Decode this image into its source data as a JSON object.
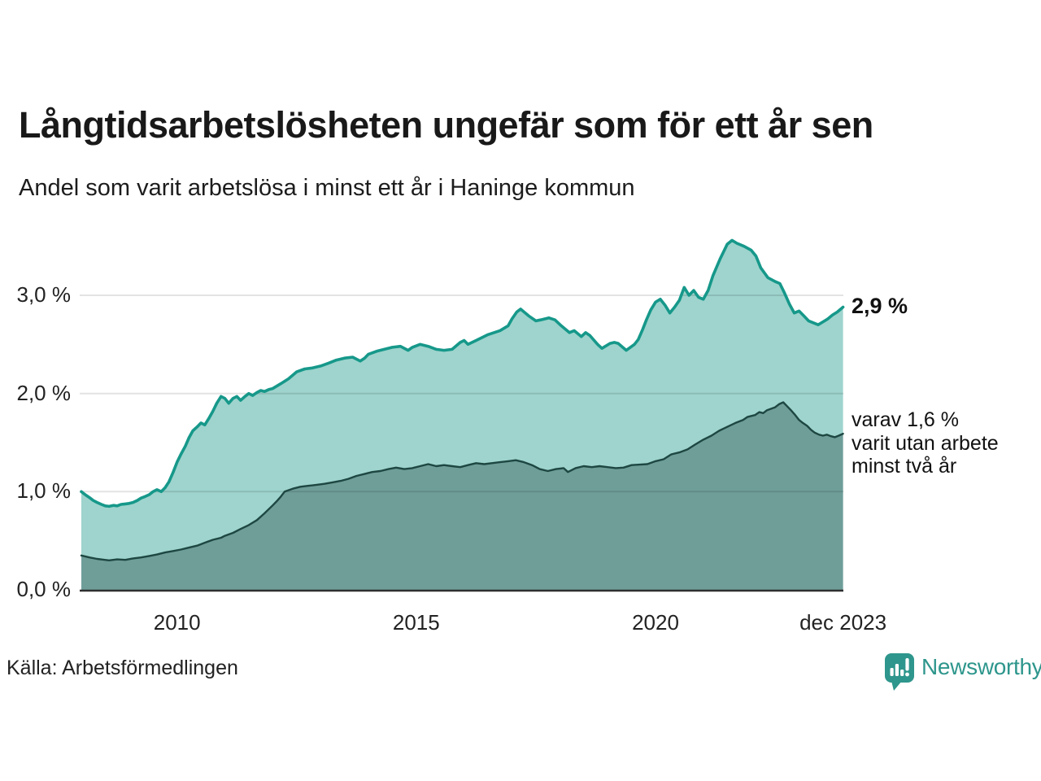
{
  "title": "Långtidsarbetslösheten ungefär som för ett år sen",
  "subtitle": "Andel som varit arbetslösa i minst ett år i Haninge kommun",
  "source": "Källa: Arbetsförmedlingen",
  "branding": {
    "name": "Newsworthy",
    "color": "#2e968c",
    "icon": "bar-chart-speech-bubble-icon"
  },
  "annotations": {
    "latest_total": "2,9 %",
    "secondary": "varav 1,6 %\nvarit utan arbete\nminst två år"
  },
  "colors": {
    "line_total": "#16988a",
    "fill_total": "#9ed4cd",
    "line_two_years": "#1e4742",
    "fill_two_years": "#6f9e99",
    "gridline": "rgba(0,0,0,0.11)",
    "axis": "#2f2f2f",
    "text": "#1a1a1a"
  },
  "chart_data": {
    "type": "area",
    "title": "Långtidsarbetslösheten ungefär som för ett år sen",
    "xlabel": "",
    "ylabel": "",
    "grid": true,
    "legend_position": "right-annotations",
    "xlim": [
      2008.0,
      2023.92
    ],
    "ylim": [
      0,
      3.6
    ],
    "x_ticks": [
      {
        "x": 2010,
        "label": "2010"
      },
      {
        "x": 2015,
        "label": "2015"
      },
      {
        "x": 2020,
        "label": "2020"
      },
      {
        "x": 2023.92,
        "label": "dec 2023"
      }
    ],
    "y_ticks": [
      {
        "y": 0,
        "label": "0,0 %"
      },
      {
        "y": 1,
        "label": "1,0 %"
      },
      {
        "y": 2,
        "label": "2,0 %"
      },
      {
        "y": 3,
        "label": "3,0 %"
      }
    ],
    "series": [
      {
        "name": "Andel arbetslösa minst ett år",
        "latest_value": 2.9,
        "color": "#16988a",
        "fill": "#9ed4cd",
        "points": [
          [
            2008.0,
            1.0
          ],
          [
            2008.08,
            0.97
          ],
          [
            2008.17,
            0.94
          ],
          [
            2008.25,
            0.91
          ],
          [
            2008.33,
            0.89
          ],
          [
            2008.42,
            0.87
          ],
          [
            2008.5,
            0.855
          ],
          [
            2008.58,
            0.85
          ],
          [
            2008.67,
            0.86
          ],
          [
            2008.75,
            0.855
          ],
          [
            2008.83,
            0.87
          ],
          [
            2008.92,
            0.875
          ],
          [
            2009.0,
            0.88
          ],
          [
            2009.08,
            0.89
          ],
          [
            2009.17,
            0.91
          ],
          [
            2009.25,
            0.935
          ],
          [
            2009.33,
            0.95
          ],
          [
            2009.42,
            0.97
          ],
          [
            2009.5,
            1.0
          ],
          [
            2009.58,
            1.02
          ],
          [
            2009.67,
            1.0
          ],
          [
            2009.75,
            1.04
          ],
          [
            2009.83,
            1.1
          ],
          [
            2009.92,
            1.2
          ],
          [
            2010.0,
            1.3
          ],
          [
            2010.08,
            1.38
          ],
          [
            2010.17,
            1.46
          ],
          [
            2010.25,
            1.55
          ],
          [
            2010.33,
            1.62
          ],
          [
            2010.42,
            1.66
          ],
          [
            2010.5,
            1.7
          ],
          [
            2010.58,
            1.68
          ],
          [
            2010.67,
            1.75
          ],
          [
            2010.75,
            1.82
          ],
          [
            2010.83,
            1.9
          ],
          [
            2010.92,
            1.97
          ],
          [
            2011.0,
            1.95
          ],
          [
            2011.08,
            1.9
          ],
          [
            2011.17,
            1.95
          ],
          [
            2011.25,
            1.97
          ],
          [
            2011.33,
            1.93
          ],
          [
            2011.42,
            1.97
          ],
          [
            2011.5,
            2.0
          ],
          [
            2011.58,
            1.98
          ],
          [
            2011.67,
            2.01
          ],
          [
            2011.75,
            2.03
          ],
          [
            2011.83,
            2.02
          ],
          [
            2011.92,
            2.04
          ],
          [
            2012.0,
            2.05
          ],
          [
            2012.17,
            2.1
          ],
          [
            2012.33,
            2.15
          ],
          [
            2012.5,
            2.22
          ],
          [
            2012.67,
            2.25
          ],
          [
            2012.83,
            2.26
          ],
          [
            2013.0,
            2.28
          ],
          [
            2013.17,
            2.31
          ],
          [
            2013.33,
            2.34
          ],
          [
            2013.5,
            2.36
          ],
          [
            2013.67,
            2.37
          ],
          [
            2013.83,
            2.33
          ],
          [
            2013.92,
            2.36
          ],
          [
            2014.0,
            2.4
          ],
          [
            2014.17,
            2.43
          ],
          [
            2014.33,
            2.45
          ],
          [
            2014.5,
            2.47
          ],
          [
            2014.67,
            2.48
          ],
          [
            2014.83,
            2.44
          ],
          [
            2014.92,
            2.47
          ],
          [
            2015.08,
            2.5
          ],
          [
            2015.25,
            2.48
          ],
          [
            2015.42,
            2.45
          ],
          [
            2015.58,
            2.44
          ],
          [
            2015.75,
            2.45
          ],
          [
            2015.92,
            2.52
          ],
          [
            2016.0,
            2.54
          ],
          [
            2016.08,
            2.5
          ],
          [
            2016.25,
            2.54
          ],
          [
            2016.5,
            2.6
          ],
          [
            2016.75,
            2.64
          ],
          [
            2016.92,
            2.69
          ],
          [
            2017.0,
            2.76
          ],
          [
            2017.1,
            2.83
          ],
          [
            2017.18,
            2.86
          ],
          [
            2017.35,
            2.79
          ],
          [
            2017.5,
            2.74
          ],
          [
            2017.6,
            2.75
          ],
          [
            2017.77,
            2.77
          ],
          [
            2017.9,
            2.75
          ],
          [
            2018.03,
            2.69
          ],
          [
            2018.2,
            2.62
          ],
          [
            2018.3,
            2.64
          ],
          [
            2018.45,
            2.58
          ],
          [
            2018.54,
            2.62
          ],
          [
            2018.63,
            2.59
          ],
          [
            2018.79,
            2.5
          ],
          [
            2018.88,
            2.46
          ],
          [
            2019.05,
            2.51
          ],
          [
            2019.14,
            2.52
          ],
          [
            2019.22,
            2.51
          ],
          [
            2019.39,
            2.44
          ],
          [
            2019.56,
            2.5
          ],
          [
            2019.64,
            2.55
          ],
          [
            2019.73,
            2.65
          ],
          [
            2019.81,
            2.75
          ],
          [
            2019.9,
            2.85
          ],
          [
            2020.0,
            2.93
          ],
          [
            2020.1,
            2.96
          ],
          [
            2020.2,
            2.9
          ],
          [
            2020.3,
            2.82
          ],
          [
            2020.4,
            2.88
          ],
          [
            2020.5,
            2.95
          ],
          [
            2020.6,
            3.08
          ],
          [
            2020.7,
            3.0
          ],
          [
            2020.8,
            3.05
          ],
          [
            2020.9,
            2.98
          ],
          [
            2021.0,
            2.96
          ],
          [
            2021.1,
            3.05
          ],
          [
            2021.2,
            3.2
          ],
          [
            2021.35,
            3.37
          ],
          [
            2021.5,
            3.52
          ],
          [
            2021.6,
            3.56
          ],
          [
            2021.7,
            3.53
          ],
          [
            2021.85,
            3.5
          ],
          [
            2022.0,
            3.46
          ],
          [
            2022.1,
            3.4
          ],
          [
            2022.2,
            3.28
          ],
          [
            2022.35,
            3.18
          ],
          [
            2022.5,
            3.14
          ],
          [
            2022.6,
            3.12
          ],
          [
            2022.7,
            3.02
          ],
          [
            2022.8,
            2.91
          ],
          [
            2022.9,
            2.82
          ],
          [
            2023.0,
            2.84
          ],
          [
            2023.1,
            2.79
          ],
          [
            2023.2,
            2.74
          ],
          [
            2023.3,
            2.72
          ],
          [
            2023.4,
            2.7
          ],
          [
            2023.5,
            2.73
          ],
          [
            2023.6,
            2.76
          ],
          [
            2023.7,
            2.8
          ],
          [
            2023.8,
            2.83
          ],
          [
            2023.92,
            2.88
          ]
        ]
      },
      {
        "name": "varav utan arbete minst två år",
        "latest_value": 1.6,
        "color": "#1e4742",
        "fill": "#6f9e99",
        "points": [
          [
            2008.0,
            0.35
          ],
          [
            2008.17,
            0.33
          ],
          [
            2008.33,
            0.315
          ],
          [
            2008.58,
            0.3
          ],
          [
            2008.75,
            0.31
          ],
          [
            2008.92,
            0.305
          ],
          [
            2009.08,
            0.32
          ],
          [
            2009.25,
            0.33
          ],
          [
            2009.42,
            0.345
          ],
          [
            2009.58,
            0.36
          ],
          [
            2009.75,
            0.38
          ],
          [
            2009.92,
            0.395
          ],
          [
            2010.08,
            0.41
          ],
          [
            2010.25,
            0.43
          ],
          [
            2010.42,
            0.45
          ],
          [
            2010.58,
            0.48
          ],
          [
            2010.75,
            0.51
          ],
          [
            2010.92,
            0.53
          ],
          [
            2011.0,
            0.55
          ],
          [
            2011.17,
            0.58
          ],
          [
            2011.33,
            0.62
          ],
          [
            2011.5,
            0.66
          ],
          [
            2011.67,
            0.71
          ],
          [
            2011.83,
            0.78
          ],
          [
            2012.0,
            0.86
          ],
          [
            2012.08,
            0.9
          ],
          [
            2012.17,
            0.95
          ],
          [
            2012.25,
            1.0
          ],
          [
            2012.42,
            1.03
          ],
          [
            2012.58,
            1.05
          ],
          [
            2012.75,
            1.06
          ],
          [
            2012.92,
            1.07
          ],
          [
            2013.08,
            1.08
          ],
          [
            2013.25,
            1.095
          ],
          [
            2013.42,
            1.11
          ],
          [
            2013.58,
            1.13
          ],
          [
            2013.75,
            1.16
          ],
          [
            2013.92,
            1.18
          ],
          [
            2014.08,
            1.2
          ],
          [
            2014.25,
            1.21
          ],
          [
            2014.42,
            1.23
          ],
          [
            2014.58,
            1.245
          ],
          [
            2014.75,
            1.23
          ],
          [
            2014.92,
            1.24
          ],
          [
            2015.08,
            1.26
          ],
          [
            2015.25,
            1.28
          ],
          [
            2015.42,
            1.26
          ],
          [
            2015.58,
            1.27
          ],
          [
            2015.75,
            1.26
          ],
          [
            2015.92,
            1.25
          ],
          [
            2016.08,
            1.27
          ],
          [
            2016.25,
            1.29
          ],
          [
            2016.42,
            1.28
          ],
          [
            2016.58,
            1.29
          ],
          [
            2016.75,
            1.3
          ],
          [
            2016.92,
            1.31
          ],
          [
            2017.08,
            1.32
          ],
          [
            2017.25,
            1.3
          ],
          [
            2017.42,
            1.27
          ],
          [
            2017.58,
            1.23
          ],
          [
            2017.75,
            1.21
          ],
          [
            2017.92,
            1.23
          ],
          [
            2018.08,
            1.24
          ],
          [
            2018.17,
            1.2
          ],
          [
            2018.33,
            1.24
          ],
          [
            2018.5,
            1.26
          ],
          [
            2018.67,
            1.25
          ],
          [
            2018.83,
            1.26
          ],
          [
            2019.0,
            1.25
          ],
          [
            2019.17,
            1.24
          ],
          [
            2019.33,
            1.245
          ],
          [
            2019.5,
            1.27
          ],
          [
            2019.67,
            1.275
          ],
          [
            2019.83,
            1.28
          ],
          [
            2020.0,
            1.31
          ],
          [
            2020.17,
            1.33
          ],
          [
            2020.33,
            1.38
          ],
          [
            2020.5,
            1.4
          ],
          [
            2020.67,
            1.43
          ],
          [
            2020.83,
            1.48
          ],
          [
            2021.0,
            1.53
          ],
          [
            2021.17,
            1.57
          ],
          [
            2021.33,
            1.62
          ],
          [
            2021.5,
            1.66
          ],
          [
            2021.67,
            1.7
          ],
          [
            2021.83,
            1.73
          ],
          [
            2021.92,
            1.76
          ],
          [
            2022.08,
            1.78
          ],
          [
            2022.17,
            1.81
          ],
          [
            2022.25,
            1.8
          ],
          [
            2022.33,
            1.83
          ],
          [
            2022.5,
            1.86
          ],
          [
            2022.58,
            1.89
          ],
          [
            2022.67,
            1.91
          ],
          [
            2022.75,
            1.87
          ],
          [
            2022.83,
            1.83
          ],
          [
            2022.92,
            1.78
          ],
          [
            2023.0,
            1.73
          ],
          [
            2023.08,
            1.7
          ],
          [
            2023.17,
            1.67
          ],
          [
            2023.25,
            1.63
          ],
          [
            2023.33,
            1.6
          ],
          [
            2023.42,
            1.58
          ],
          [
            2023.5,
            1.57
          ],
          [
            2023.58,
            1.58
          ],
          [
            2023.67,
            1.565
          ],
          [
            2023.75,
            1.555
          ],
          [
            2023.83,
            1.57
          ],
          [
            2023.92,
            1.59
          ]
        ]
      }
    ]
  }
}
